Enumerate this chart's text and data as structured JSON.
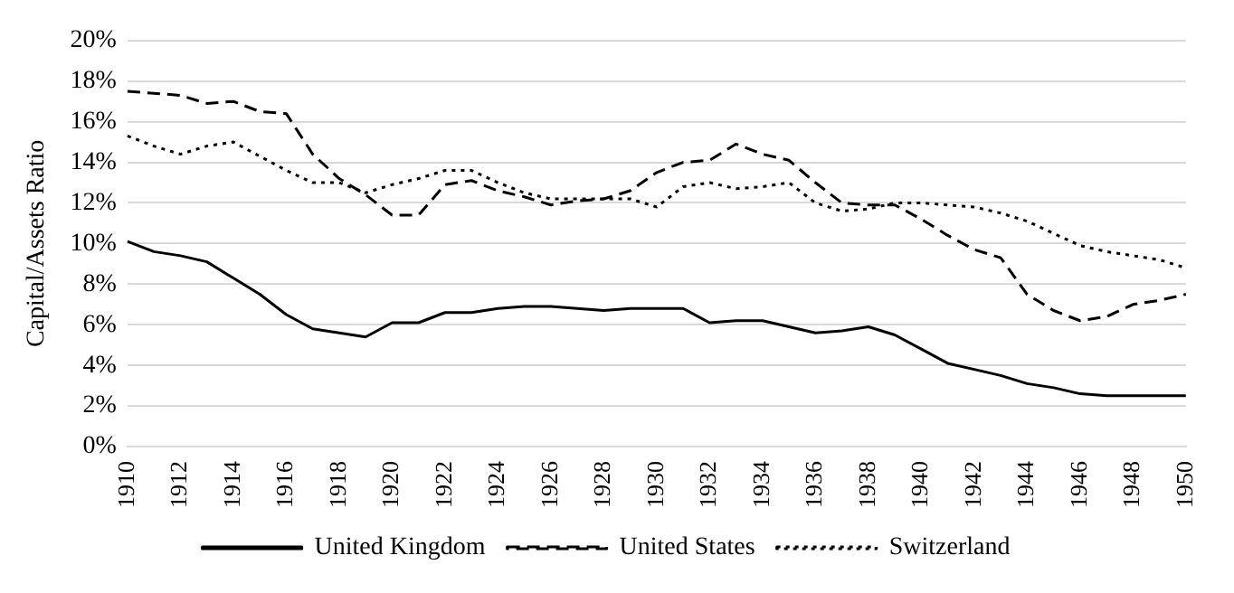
{
  "chart_data": {
    "type": "line",
    "ylabel": "Capital/Assets Ratio",
    "categories": [
      "1910",
      null,
      "1912",
      null,
      "1914",
      null,
      "1916",
      null,
      "1918",
      null,
      "1920",
      null,
      "1922",
      null,
      "1924",
      null,
      "1926",
      null,
      "1928",
      null,
      "1930",
      null,
      "1932",
      null,
      "1934",
      null,
      "1936",
      null,
      "1938",
      null,
      "1940",
      null,
      "1942",
      null,
      "1944",
      null,
      "1946",
      null,
      "1948",
      null,
      "1950"
    ],
    "series": [
      {
        "name": "United Kingdom",
        "color": "#000000",
        "line_style": "solid",
        "values": [
          10.1,
          9.6,
          9.4,
          9.1,
          8.3,
          7.5,
          6.5,
          5.8,
          5.6,
          5.4,
          6.1,
          6.1,
          6.6,
          6.6,
          6.8,
          6.9,
          6.9,
          6.8,
          6.7,
          6.8,
          6.8,
          6.8,
          6.1,
          6.2,
          6.2,
          5.9,
          5.6,
          5.7,
          5.9,
          5.5,
          4.8,
          4.1,
          3.8,
          3.5,
          3.1,
          2.9,
          2.6,
          2.5,
          2.5,
          2.5,
          2.5
        ]
      },
      {
        "name": "United States",
        "color": "#000000",
        "line_style": "dashed",
        "values": [
          17.5,
          17.4,
          17.3,
          16.9,
          17.0,
          16.5,
          16.4,
          14.4,
          13.2,
          12.4,
          11.4,
          11.4,
          12.9,
          13.1,
          12.6,
          12.3,
          11.9,
          12.1,
          12.2,
          12.6,
          13.5,
          14.0,
          14.1,
          14.9,
          14.4,
          14.1,
          13.0,
          12.0,
          11.9,
          11.9,
          11.2,
          10.4,
          9.7,
          9.3,
          7.5,
          6.7,
          6.2,
          6.4,
          7.0,
          7.2,
          7.5
        ]
      },
      {
        "name": "Switzerland",
        "color": "#000000",
        "line_style": "dotted",
        "values": [
          15.3,
          14.8,
          14.4,
          14.8,
          15.0,
          14.3,
          13.6,
          13.0,
          13.0,
          12.5,
          12.9,
          13.2,
          13.6,
          13.6,
          13.0,
          12.5,
          12.2,
          12.2,
          12.2,
          12.2,
          11.8,
          12.8,
          13.0,
          12.7,
          12.8,
          13.0,
          12.0,
          11.6,
          11.7,
          12.0,
          12.0,
          11.9,
          11.8,
          11.5,
          11.1,
          10.5,
          9.9,
          9.6,
          9.4,
          9.2,
          8.8
        ]
      }
    ],
    "ylim": [
      0,
      20
    ],
    "yticks": [
      {
        "value": 0,
        "label": "0%"
      },
      {
        "value": 2,
        "label": "2%"
      },
      {
        "value": 4,
        "label": "4%"
      },
      {
        "value": 6,
        "label": "6%"
      },
      {
        "value": 8,
        "label": "8%"
      },
      {
        "value": 10,
        "label": "10%"
      },
      {
        "value": 12,
        "label": "12%"
      },
      {
        "value": 14,
        "label": "14%"
      },
      {
        "value": 16,
        "label": "16%"
      },
      {
        "value": 18,
        "label": "18%"
      },
      {
        "value": 20,
        "label": "20%"
      }
    ],
    "grid": "y",
    "legend": "bottom",
    "marker": "none"
  }
}
